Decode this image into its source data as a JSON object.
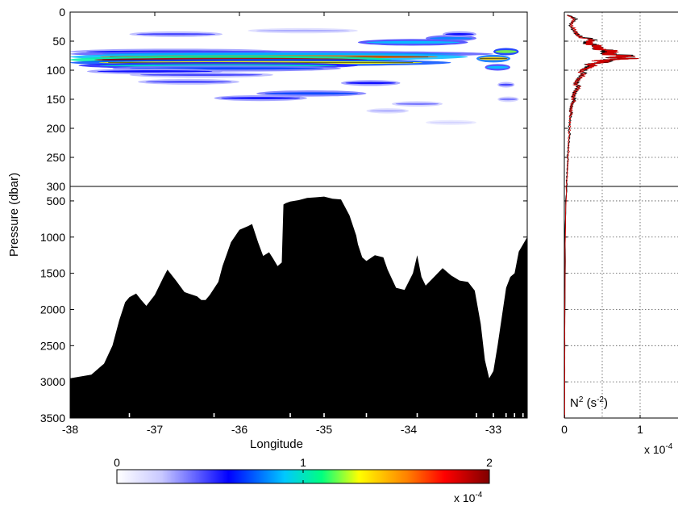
{
  "chart_data": [
    {
      "type": "heatmap",
      "panel": "upper-left",
      "xlim": [
        -38,
        -32.6
      ],
      "ylim": [
        0,
        300
      ],
      "y_reversed": true,
      "yticks": [
        "0",
        "50",
        "100",
        "150",
        "200",
        "250",
        "300"
      ],
      "ytick_values": [
        0,
        50,
        100,
        150,
        200,
        250,
        300
      ],
      "streaks": [
        {
          "x": [
            -37.3,
            -36.2
          ],
          "y": 38,
          "level": 0.5
        },
        {
          "x": [
            -35.9,
            -34.6
          ],
          "y": 32,
          "level": 0.3
        },
        {
          "x": [
            -34.6,
            -33.3
          ],
          "y": 52,
          "level": 0.9
        },
        {
          "x": [
            -33.8,
            -33.2
          ],
          "y": 45,
          "level": 0.8
        },
        {
          "x": [
            -33.6,
            -33.2
          ],
          "y": 38,
          "level": 0.6
        },
        {
          "x": [
            -38.0,
            -35.5
          ],
          "y": 68,
          "level": 0.6
        },
        {
          "x": [
            -38.0,
            -33.0
          ],
          "y": 72,
          "level": 0.8
        },
        {
          "x": [
            -38.0,
            -33.3
          ],
          "y": 77,
          "level": 1.6
        },
        {
          "x": [
            -38.0,
            -34.2
          ],
          "y": 82,
          "level": 1.9
        },
        {
          "x": [
            -38.0,
            -33.5
          ],
          "y": 87,
          "level": 1.3
        },
        {
          "x": [
            -37.9,
            -34.6
          ],
          "y": 92,
          "level": 1.0
        },
        {
          "x": [
            -37.5,
            -34.8
          ],
          "y": 97,
          "level": 0.7
        },
        {
          "x": [
            -37.8,
            -36.2
          ],
          "y": 102,
          "level": 0.6
        },
        {
          "x": [
            -37.3,
            -35.6
          ],
          "y": 108,
          "level": 0.5
        },
        {
          "x": [
            -37.2,
            -36.0
          ],
          "y": 120,
          "level": 0.5
        },
        {
          "x": [
            -34.8,
            -34.1
          ],
          "y": 122,
          "level": 0.6
        },
        {
          "x": [
            -35.8,
            -34.5
          ],
          "y": 140,
          "level": 0.7
        },
        {
          "x": [
            -36.3,
            -35.2
          ],
          "y": 148,
          "level": 0.6
        },
        {
          "x": [
            -34.5,
            -34.0
          ],
          "y": 170,
          "level": 0.3
        },
        {
          "x": [
            -34.2,
            -33.6
          ],
          "y": 158,
          "level": 0.4
        },
        {
          "x": [
            -33.8,
            -33.2
          ],
          "y": 190,
          "level": 0.2
        },
        {
          "x": [
            -33.2,
            -32.8
          ],
          "y": 80,
          "level": 1.4
        },
        {
          "x": [
            -33.0,
            -32.7
          ],
          "y": 68,
          "level": 1.2
        },
        {
          "x": [
            -33.1,
            -32.8
          ],
          "y": 95,
          "level": 0.9
        },
        {
          "x": [
            -32.95,
            -32.75
          ],
          "y": 125,
          "level": 0.5
        },
        {
          "x": [
            -32.95,
            -32.7
          ],
          "y": 150,
          "level": 0.4
        }
      ]
    },
    {
      "type": "area",
      "panel": "lower-left",
      "xlabel": "Longitude",
      "xlim": [
        -38,
        -32.6
      ],
      "ylim": [
        300,
        3500
      ],
      "y_reversed": true,
      "xticks": [
        "-38",
        "-37",
        "-36",
        "-35",
        "-34",
        "-33"
      ],
      "xtick_values": [
        -38,
        -37,
        -36,
        -35,
        -34,
        -33
      ],
      "yticks": [
        "500",
        "1000",
        "1500",
        "2000",
        "2500",
        "3000",
        "3500"
      ],
      "ytick_values": [
        500,
        1000,
        1500,
        2000,
        2500,
        3000,
        3500
      ],
      "station_marks": [
        -37.3,
        -36.3,
        -35.4,
        -35.0,
        -34.5,
        -33.9,
        -33.2,
        -33.0,
        -32.85,
        -32.75,
        -32.65
      ],
      "series": [
        {
          "x": [
            -38.0,
            -37.75,
            -37.6,
            -37.5,
            -37.42,
            -37.35,
            -37.3,
            -37.22,
            -37.16,
            -37.1,
            -37.0,
            -36.9,
            -36.85,
            -36.75,
            -36.65,
            -36.6,
            -36.55,
            -36.5,
            -36.45,
            -36.4,
            -36.35,
            -36.25,
            -36.2,
            -36.1,
            -36.0,
            -35.9,
            -35.85,
            -35.78,
            -35.72,
            -35.65,
            -35.6,
            -35.55,
            -35.5,
            -35.48,
            -35.45,
            -35.4,
            -35.3,
            -35.2,
            -35.1,
            -35.0,
            -34.9,
            -34.8,
            -34.7,
            -34.62,
            -34.6,
            -34.55,
            -34.5,
            -34.4,
            -34.3,
            -34.25,
            -34.15,
            -34.05,
            -33.95,
            -33.9,
            -33.85,
            -33.8,
            -33.7,
            -33.6,
            -33.5,
            -33.4,
            -33.3,
            -33.22,
            -33.15,
            -33.1,
            -33.05,
            -33.0,
            -32.95,
            -32.9,
            -32.85,
            -32.8,
            -32.75,
            -32.7,
            -32.65,
            -32.6
          ],
          "y": [
            2950,
            2900,
            2750,
            2500,
            2150,
            1900,
            1830,
            1780,
            1870,
            1950,
            1800,
            1560,
            1450,
            1600,
            1760,
            1780,
            1800,
            1820,
            1870,
            1870,
            1800,
            1620,
            1400,
            1070,
            900,
            850,
            820,
            1070,
            1260,
            1210,
            1300,
            1400,
            1350,
            550,
            530,
            510,
            490,
            460,
            450,
            440,
            470,
            480,
            700,
            980,
            1100,
            1280,
            1330,
            1250,
            1280,
            1450,
            1700,
            1730,
            1500,
            1250,
            1550,
            1670,
            1550,
            1430,
            1530,
            1600,
            1620,
            1740,
            2200,
            2700,
            2950,
            2850,
            2500,
            2100,
            1700,
            1550,
            1500,
            1200,
            1100,
            1000
          ]
        }
      ]
    },
    {
      "type": "line",
      "panel": "right-profile",
      "xlabel_base": "N",
      "xlabel_exp": "2",
      "xlabel_unit": "(s",
      "xlabel_unit_exp": "-2",
      "xlabel_close": ")",
      "xlim": [
        0,
        1.5
      ],
      "xticks": [
        "0",
        "1"
      ],
      "xtick_values": [
        0,
        1
      ],
      "x_multiplier": "x 10",
      "x_multiplier_exp": "-4",
      "pressure_upper": [
        0,
        300
      ],
      "pressure_lower": [
        300,
        3500
      ],
      "series": [
        {
          "name": "black",
          "color": "#000000",
          "y": [
            5,
            12,
            22,
            30,
            40,
            48,
            52,
            56,
            60,
            64,
            68,
            72,
            76,
            78,
            80,
            82,
            84,
            86,
            90,
            95,
            100,
            110,
            120,
            130,
            140,
            150,
            160,
            170,
            180,
            200,
            220,
            240,
            260,
            280,
            300,
            500,
            1000,
            1500,
            2000,
            2500,
            3000,
            3500
          ],
          "x": [
            0.05,
            0.15,
            0.08,
            0.1,
            0.2,
            0.35,
            0.3,
            0.35,
            0.45,
            0.5,
            0.55,
            0.65,
            0.8,
            0.7,
            0.78,
            0.6,
            0.5,
            0.55,
            0.35,
            0.3,
            0.28,
            0.2,
            0.18,
            0.16,
            0.14,
            0.12,
            0.1,
            0.09,
            0.08,
            0.07,
            0.06,
            0.05,
            0.04,
            0.035,
            0.03,
            0.02,
            0.012,
            0.01,
            0.008,
            0.006,
            0.005,
            0.004
          ]
        },
        {
          "name": "red",
          "color": "#cc0000",
          "y": [
            5,
            12,
            22,
            30,
            40,
            48,
            52,
            56,
            60,
            64,
            68,
            72,
            76,
            78,
            80,
            82,
            84,
            86,
            90,
            95,
            100,
            110,
            120,
            130,
            140,
            150,
            160,
            170,
            180,
            200,
            220,
            240,
            260,
            280,
            300,
            500,
            1000,
            1500,
            2000,
            2500,
            3000,
            3500
          ],
          "x": [
            0.04,
            0.12,
            0.1,
            0.12,
            0.18,
            0.32,
            0.33,
            0.38,
            0.42,
            0.52,
            0.6,
            0.62,
            0.75,
            0.72,
            0.8,
            0.62,
            0.48,
            0.5,
            0.38,
            0.32,
            0.25,
            0.22,
            0.16,
            0.17,
            0.13,
            0.13,
            0.09,
            0.1,
            0.07,
            0.08,
            0.05,
            0.06,
            0.04,
            0.04,
            0.03,
            0.02,
            0.013,
            0.01,
            0.008,
            0.006,
            0.005,
            0.004
          ]
        }
      ]
    },
    {
      "type": "colorbar",
      "panel": "bottom-colorbar",
      "range": [
        0,
        2
      ],
      "ticks": [
        "0",
        "1",
        "2"
      ],
      "tick_values": [
        0,
        1,
        2
      ],
      "multiplier": "x 10",
      "multiplier_exp": "-4"
    }
  ],
  "ylabel": "Pressure (dbar)",
  "colors": {
    "background": "#ffffff",
    "axis": "#000000",
    "topography": "#000000",
    "colormap": [
      "#ffffff",
      "#c8c8ff",
      "#0000ff",
      "#00c8ff",
      "#00ff80",
      "#ffff00",
      "#ff8000",
      "#ff0000",
      "#800000"
    ]
  }
}
